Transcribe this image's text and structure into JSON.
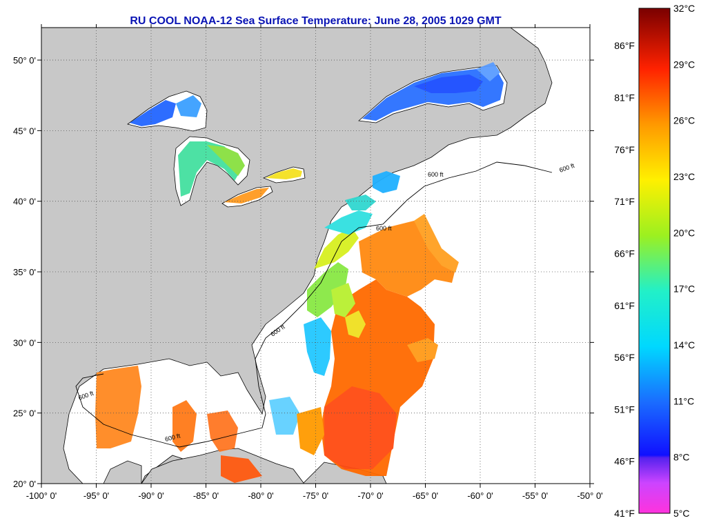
{
  "title": "RU COOL  NOAA-12  Sea Surface Temperature:  June 28, 2005 1029 GMT",
  "map": {
    "lon_range": [
      -100,
      -50
    ],
    "lat_range": [
      20,
      52.3
    ],
    "lon_ticks": [
      "-100° 0'",
      "-95° 0'",
      "-90° 0'",
      "-85° 0'",
      "-80° 0'",
      "-75° 0'",
      "-70° 0'",
      "-65° 0'",
      "-60° 0'",
      "-55° 0'",
      "-50° 0'"
    ],
    "lat_ticks": [
      "20° 0'",
      "25° 0'",
      "30° 0'",
      "35° 0'",
      "40° 0'",
      "45° 0'",
      "50° 0'"
    ],
    "contour_label": "600 ft",
    "colors": {
      "land": "#c8c8c8",
      "ocean_cloud": "#ffffff",
      "grid": "#555555"
    }
  },
  "legend": {
    "celsius": [
      "32°C",
      "29°C",
      "26°C",
      "23°C",
      "20°C",
      "17°C",
      "14°C",
      "11°C",
      "8°C",
      "5°C"
    ],
    "fahrenheit": [
      "86°F",
      "81°F",
      "76°F",
      "71°F",
      "66°F",
      "61°F",
      "56°F",
      "51°F",
      "46°F",
      "41°F"
    ]
  }
}
